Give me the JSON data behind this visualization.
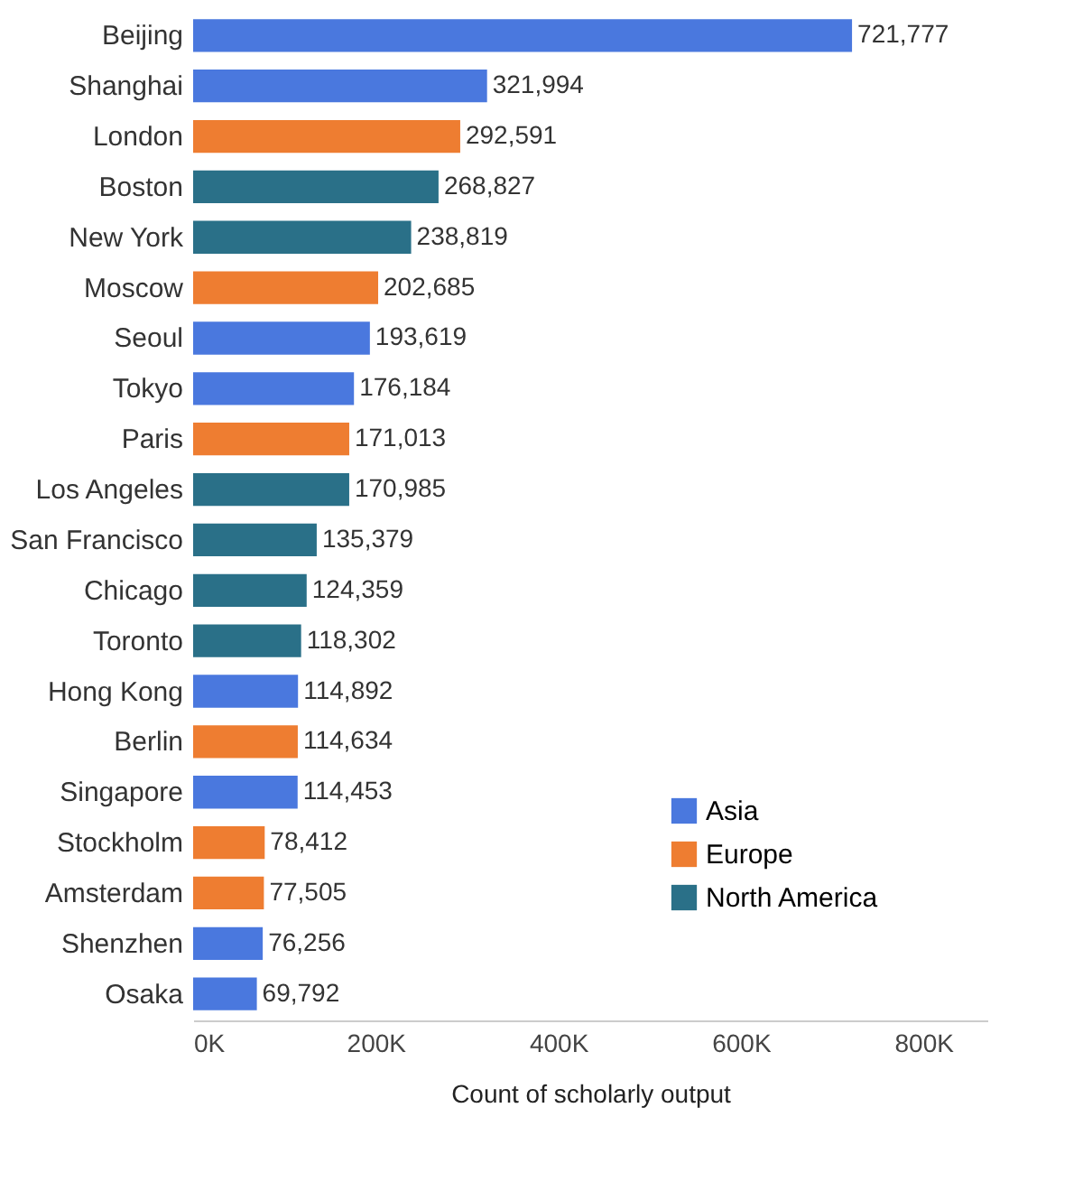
{
  "chart_data": {
    "type": "bar",
    "orientation": "horizontal",
    "xlabel": "Count of scholarly output",
    "categories": [
      "Beijing",
      "Shanghai",
      "London",
      "Boston",
      "New York",
      "Moscow",
      "Seoul",
      "Tokyo",
      "Paris",
      "Los Angeles",
      "San Francisco",
      "Chicago",
      "Toronto",
      "Hong Kong",
      "Berlin",
      "Singapore",
      "Stockholm",
      "Amsterdam",
      "Shenzhen",
      "Osaka"
    ],
    "series": [
      {
        "name": "Asia",
        "color": "#4a78de",
        "values": [
          721777,
          321994,
          null,
          null,
          null,
          null,
          193619,
          176184,
          null,
          null,
          null,
          null,
          null,
          114892,
          null,
          114453,
          null,
          null,
          76256,
          69792
        ],
        "value_labels": [
          "721,777",
          "321,994",
          null,
          null,
          null,
          null,
          "193,619",
          "176,184",
          null,
          null,
          null,
          null,
          null,
          "114,892",
          null,
          "114,453",
          null,
          null,
          "76,256",
          "69,792"
        ]
      },
      {
        "name": "Europe",
        "color": "#ee7d31",
        "values": [
          null,
          null,
          292591,
          null,
          null,
          202685,
          null,
          null,
          171013,
          null,
          null,
          null,
          null,
          null,
          114634,
          null,
          78412,
          77505,
          null,
          null
        ],
        "value_labels": [
          null,
          null,
          "292,591",
          null,
          null,
          "202,685",
          null,
          null,
          "171,013",
          null,
          null,
          null,
          null,
          null,
          "114,634",
          null,
          "78,412",
          "77,505",
          null,
          null
        ]
      },
      {
        "name": "North America",
        "color": "#2a7088",
        "values": [
          null,
          null,
          null,
          268827,
          238819,
          null,
          null,
          null,
          null,
          170985,
          135379,
          124359,
          118302,
          null,
          null,
          null,
          null,
          null,
          null,
          null
        ],
        "value_labels": [
          null,
          null,
          null,
          "268,827",
          "238,819",
          null,
          null,
          null,
          null,
          "170,985",
          "135,379",
          "124,359",
          "118,302",
          null,
          null,
          null,
          null,
          null,
          null,
          null
        ]
      }
    ],
    "xlim": [
      0,
      870000
    ],
    "xticks": [
      {
        "value": 0,
        "label": "0K"
      },
      {
        "value": 200000,
        "label": "200K"
      },
      {
        "value": 400000,
        "label": "400K"
      },
      {
        "value": 600000,
        "label": "600K"
      },
      {
        "value": 800000,
        "label": "800K"
      }
    ],
    "grid": false,
    "legend": "bottom right"
  }
}
